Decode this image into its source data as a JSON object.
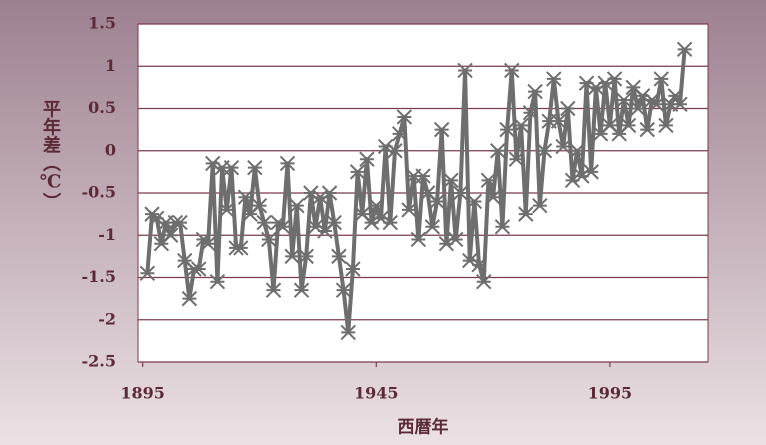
{
  "chart_data": {
    "type": "line",
    "ylabel": "平年差（℃）",
    "xlabel": "西暦年",
    "x": [
      1896,
      1897,
      1898,
      1899,
      1900,
      1901,
      1902,
      1903,
      1904,
      1905,
      1906,
      1907,
      1908,
      1909,
      1910,
      1911,
      1912,
      1913,
      1914,
      1915,
      1916,
      1917,
      1918,
      1919,
      1920,
      1921,
      1922,
      1923,
      1924,
      1925,
      1926,
      1927,
      1928,
      1929,
      1930,
      1931,
      1932,
      1933,
      1934,
      1935,
      1936,
      1937,
      1938,
      1939,
      1940,
      1941,
      1942,
      1943,
      1944,
      1945,
      1946,
      1947,
      1948,
      1949,
      1950,
      1951,
      1952,
      1953,
      1954,
      1955,
      1956,
      1957,
      1958,
      1959,
      1960,
      1961,
      1962,
      1963,
      1964,
      1965,
      1966,
      1967,
      1968,
      1969,
      1970,
      1971,
      1972,
      1973,
      1974,
      1975,
      1976,
      1977,
      1978,
      1979,
      1980,
      1981,
      1982,
      1983,
      1984,
      1985,
      1986,
      1987,
      1988,
      1989,
      1990,
      1991,
      1992,
      1993,
      1994,
      1995,
      1996,
      1997,
      1998,
      1999,
      2000,
      2001,
      2002,
      2003,
      2004,
      2005,
      2006,
      2007,
      2008,
      2009,
      2010,
      2011
    ],
    "series": [
      {
        "name": "平年差",
        "color": "#6e6e6e",
        "values": [
          -1.45,
          -0.75,
          -0.8,
          -1.1,
          -0.85,
          -1.0,
          -0.85,
          -0.85,
          -1.3,
          -1.75,
          -1.4,
          -1.4,
          -1.05,
          -1.1,
          -0.15,
          -1.55,
          -0.2,
          -0.7,
          -0.2,
          -1.15,
          -1.15,
          -0.55,
          -0.75,
          -0.2,
          -0.65,
          -0.85,
          -1.05,
          -1.65,
          -0.85,
          -0.9,
          -0.15,
          -1.25,
          -0.65,
          -1.65,
          -1.25,
          -0.5,
          -0.9,
          -0.55,
          -0.95,
          -0.5,
          -0.85,
          -1.25,
          -1.65,
          -2.15,
          -1.4,
          -0.25,
          -0.75,
          -0.1,
          -0.85,
          -0.65,
          -0.8,
          0.05,
          -0.85,
          0.0,
          0.2,
          0.4,
          -0.7,
          -0.3,
          -1.05,
          -0.3,
          -0.5,
          -0.9,
          -0.6,
          0.25,
          -1.1,
          -0.35,
          -1.05,
          -0.5,
          0.95,
          -1.3,
          -0.6,
          -1.35,
          -1.55,
          -0.35,
          -0.55,
          0.0,
          -0.9,
          0.25,
          0.95,
          -0.1,
          0.3,
          -0.75,
          0.45,
          0.7,
          -0.65,
          0.0,
          0.35,
          0.85,
          0.35,
          0.05,
          0.5,
          -0.35,
          0.0,
          -0.3,
          0.8,
          -0.25,
          0.75,
          0.2,
          0.8,
          0.3,
          0.85,
          0.2,
          0.6,
          0.3,
          0.75,
          0.5,
          0.65,
          0.25,
          0.6,
          0.55,
          0.85,
          0.3,
          0.55,
          0.65,
          0.55,
          1.2
        ]
      }
    ],
    "xlim": [
      1894,
      2016
    ],
    "xticks": [
      1895,
      1945,
      1995
    ],
    "ylim": [
      -2.5,
      1.5
    ],
    "yticks": [
      -2.5,
      -2,
      -1.5,
      -1,
      -0.5,
      0,
      0.5,
      1,
      1.5
    ],
    "grid": true
  }
}
